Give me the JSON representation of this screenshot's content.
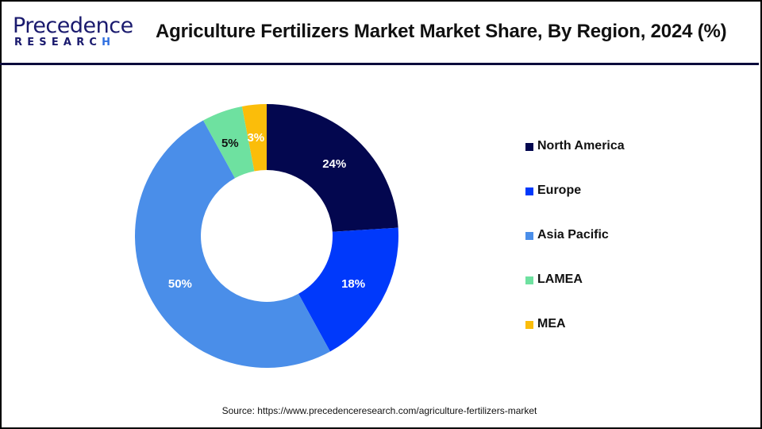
{
  "header": {
    "logo_main": "Precedence",
    "logo_sub_pre": "RESEAR",
    "logo_sub_c": "C",
    "logo_sub_h": "H",
    "title": "Agriculture Fertilizers Market Market Share, By Region, 2024 (%)"
  },
  "legend": {
    "items": [
      {
        "label": "North America",
        "color": "#03074f"
      },
      {
        "label": "Europe",
        "color": "#0039fb"
      },
      {
        "label": "Asia Pacific",
        "color": "#4a8ee9"
      },
      {
        "label": "LAMEA",
        "color": "#6ee1a0"
      },
      {
        "label": "MEA",
        "color": "#fbbd0a"
      }
    ]
  },
  "source": "Source: https://www.precedenceresearch.com/agriculture-fertilizers-market",
  "chart_data": {
    "type": "pie",
    "subtype": "donut",
    "title": "Agriculture Fertilizers Market Market Share, By Region, 2024 (%)",
    "categories": [
      "North America",
      "Europe",
      "Asia Pacific",
      "LAMEA",
      "MEA"
    ],
    "values": [
      24,
      18,
      50,
      5,
      3
    ],
    "labels": [
      "24%",
      "18%",
      "50%",
      "5%",
      "3%"
    ],
    "colors": [
      "#03074f",
      "#0039fb",
      "#4a8ee9",
      "#6ee1a0",
      "#fbbd0a"
    ],
    "label_colors": [
      "#ffffff",
      "#ffffff",
      "#ffffff",
      "#111111",
      "#ffffff"
    ],
    "legend_position": "right",
    "start_angle_deg": 0,
    "direction": "clockwise"
  }
}
